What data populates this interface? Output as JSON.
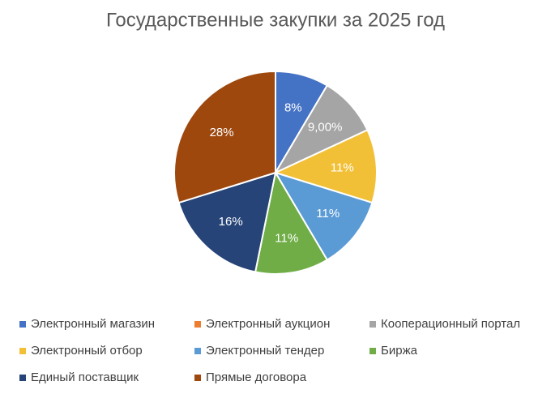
{
  "chart_data": {
    "type": "pie",
    "title": "Государственные закупки за 2025 год",
    "categories": [
      "Электронный магазин",
      "Электронный аукцион",
      "Кооперационный портал",
      "Электронный отбор",
      "Электронный тендер",
      "Биржа",
      "Единый поставщик",
      "Прямые договора"
    ],
    "values": [
      8,
      0,
      9,
      11,
      11,
      11,
      16,
      28
    ],
    "value_labels": [
      "8%",
      null,
      "9,00%",
      "11%",
      "11%",
      "11%",
      "16%",
      "28%"
    ],
    "colors": [
      "#4472c4",
      "#ed7d31",
      "#a5a5a5",
      "#f2c037",
      "#5b9bd5",
      "#70ad47",
      "#264478",
      "#9e480e"
    ],
    "legend": "bottom"
  }
}
